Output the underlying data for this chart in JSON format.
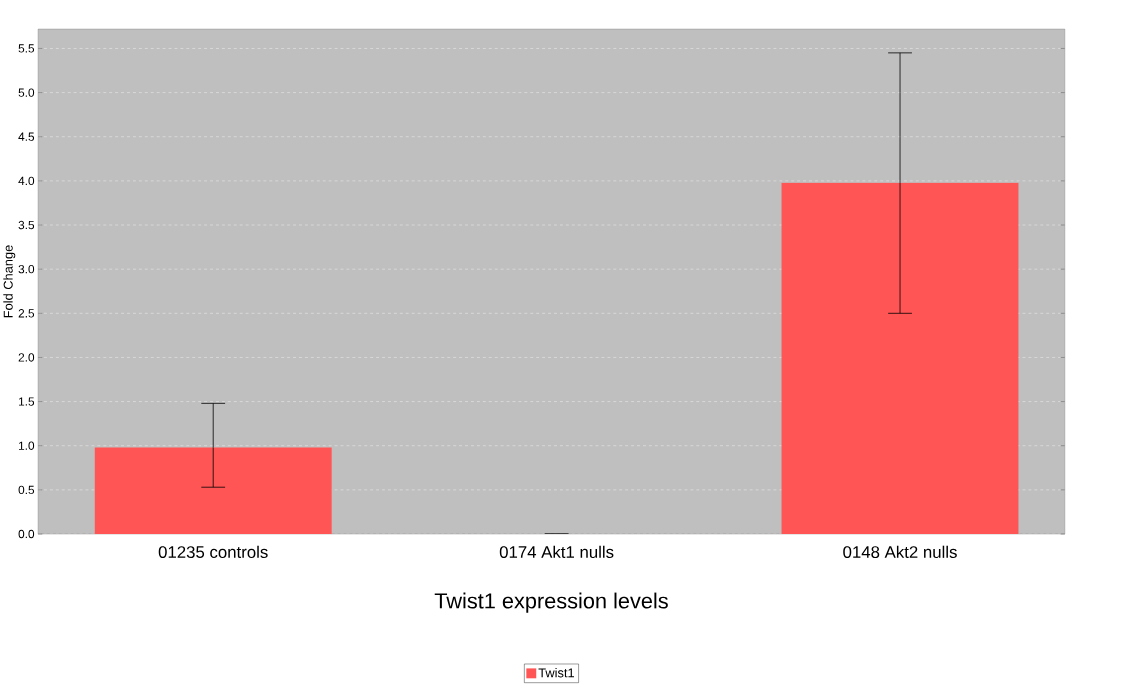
{
  "chart_data": {
    "type": "bar",
    "xlabel": "Twist1 expression levels",
    "ylabel": "Fold Change",
    "categories": [
      "01235 controls",
      "0174 Akt1 nulls",
      "0148 Akt2 nulls"
    ],
    "series": [
      {
        "name": "Twist1",
        "color": "#ff5555",
        "values": [
          0.98,
          0,
          3.98
        ],
        "errors": [
          [
            0.53,
            1.48
          ],
          0,
          [
            2.5,
            5.45
          ]
        ]
      }
    ],
    "ylim": [
      0,
      5.72
    ],
    "yticks": [
      {
        "value": 0,
        "label": "0.0"
      },
      0.5,
      {
        "value": 1,
        "label": "1.0"
      },
      1.5,
      {
        "value": 2,
        "label": "2.0"
      },
      2.5,
      {
        "value": 3,
        "label": "3.0"
      },
      3.5,
      {
        "value": 4,
        "label": "4.0"
      },
      4.5,
      {
        "value": 5,
        "label": "5.0"
      },
      5.5
    ],
    "grid": "y",
    "legend": "bottom"
  }
}
